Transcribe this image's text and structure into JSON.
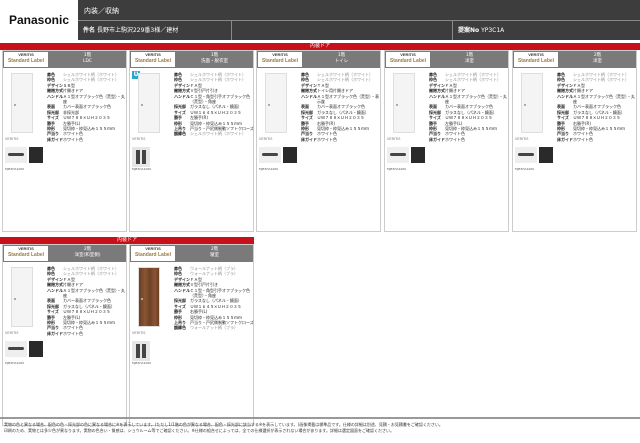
{
  "header": {
    "logo": "Panasonic",
    "category": "内装／収納",
    "project_label": "件名",
    "project": "長野市上駒沢229番3様／建材",
    "proposal_label": "提案No",
    "proposal_no": "YP3C1A"
  },
  "sections": [
    {
      "title": "内装ドア"
    },
    {
      "title": "内装ドア"
    }
  ],
  "brand": {
    "line1": "VERITIS",
    "line2": "Standard Label"
  },
  "cards": [
    {
      "floor": "1階",
      "room": "LDC",
      "door": "white",
      "hardware": "lever",
      "badge": "",
      "specs": [
        [
          "扉色",
          "シェルホワイト柄（ホワイト）",
          1
        ],
        [
          "枠色",
          "シェルホワイト柄（ホワイト）",
          1
        ],
        [
          "デザイン",
          "ＳＢ型"
        ],
        [
          "開閉方式",
          "片開きドア"
        ],
        [
          "ハンドル",
          "Ａ１型オフブラック色（荒型）・丸座"
        ],
        [
          "表面",
          "カバー表面オフブラック色"
        ],
        [
          "採光部",
          "非採光部"
        ],
        [
          "サイズ",
          "ＵＷ７８８×ＵＨ２０３５"
        ],
        [
          "勝手",
          "左勝手(L)"
        ],
        [
          "枠形",
          "見切枠・枠見込み１５５ｍｍ"
        ],
        [
          "戸当り",
          "ホワイト色"
        ],
        [
          "床ガイド",
          "ホワイト色"
        ]
      ]
    },
    {
      "floor": "1階",
      "room": "洗面・脱衣室",
      "door": "white",
      "hardware": "pull",
      "badge": "U",
      "specs": [
        [
          "扉色",
          "シェルホワイト柄（ホワイト）",
          1
        ],
        [
          "枠色",
          "シェルホワイト柄（ホワイト）",
          1
        ],
        [
          "デザイン",
          "ＦＡ型"
        ],
        [
          "開閉方式",
          "Ｖ型引戸片引き"
        ],
        [
          "ハンドル",
          "Ｃ１型・角型引手オフブラック色（荒型）・角座"
        ],
        [
          "採光部",
          "ガラスなし（パネル・鏡面）"
        ],
        [
          "サイズ",
          "ＵＷ１６４５×ＵＨ２０３５"
        ],
        [
          "勝手",
          "左勝手(R)"
        ],
        [
          "枠形",
          "見切枠・枠見込み１５５ｍｍ"
        ],
        [
          "上吊り",
          "戸当り・戸尻側制動ソフトクローズ"
        ],
        [
          "額縁色",
          "シェルホワイト柄（ホワイト）",
          1
        ]
      ]
    },
    {
      "floor": "1階",
      "room": "トイレ",
      "door": "white",
      "hardware": "lever",
      "badge": "",
      "specs": [
        [
          "扉色",
          "シェルホワイト柄（ホワイト）",
          1
        ],
        [
          "枠色",
          "シェルホワイト柄（ホワイト）",
          1
        ],
        [
          "デザイン",
          "ＴＡ型"
        ],
        [
          "開閉方式",
          "トイレ用片開きドア"
        ],
        [
          "ハンドル",
          "Ａ１型オフブラック色（荒型）・表示錠"
        ],
        [
          "表面",
          "カバー表面オフブラック色"
        ],
        [
          "採光部",
          "ガラスなし（パネル・鏡面）"
        ],
        [
          "サイズ",
          "ＵＷ７８８×ＵＨ２０３５"
        ],
        [
          "勝手",
          "右勝手(R)"
        ],
        [
          "枠形",
          "見切枠・枠見込み１５５ｍｍ"
        ],
        [
          "戸当り",
          "ホワイト色"
        ],
        [
          "床ガイド",
          "ホワイト色"
        ]
      ]
    },
    {
      "floor": "1階",
      "room": "洋室",
      "door": "white",
      "hardware": "lever",
      "badge": "",
      "specs": [
        [
          "扉色",
          "シェルホワイト柄（ホワイト）",
          1
        ],
        [
          "枠色",
          "シェルホワイト柄（ホワイト）",
          1
        ],
        [
          "デザイン",
          "ＦＡ型"
        ],
        [
          "開閉方式",
          "片開きドア"
        ],
        [
          "ハンドル",
          "Ａ１型オフブラック色（荒型）・丸座"
        ],
        [
          "表面",
          "カバー表面オフブラック色"
        ],
        [
          "採光部",
          "ガラスなし（パネル・鏡面）"
        ],
        [
          "サイズ",
          "ＵＷ７８８×ＵＨ２０３５"
        ],
        [
          "勝手",
          "左勝手(L)"
        ],
        [
          "枠形",
          "見切枠・枠見込み１５５ｍｍ"
        ],
        [
          "戸当り",
          "ホワイト色"
        ],
        [
          "床ガイド",
          "ホワイト色"
        ]
      ]
    },
    {
      "floor": "2階",
      "room": "洋室",
      "door": "white",
      "hardware": "lever",
      "badge": "",
      "specs": [
        [
          "扉色",
          "シェルホワイト柄（ホワイト）",
          1
        ],
        [
          "枠色",
          "シェルホワイト柄（ホワイト）",
          1
        ],
        [
          "デザイン",
          "ＦＡ型"
        ],
        [
          "開閉方式",
          "片開きドア"
        ],
        [
          "ハンドル",
          "Ａ１型オフブラック色（荒型）・丸座"
        ],
        [
          "表面",
          "カバー表面オフブラック色"
        ],
        [
          "採光部",
          "ガラスなし（パネル・鏡面）"
        ],
        [
          "サイズ",
          "ＵＷ７８８×ＵＨ２０３５"
        ],
        [
          "勝手",
          "右勝手(R)"
        ],
        [
          "枠形",
          "見切枠・枠見込み１５５ｍｍ"
        ],
        [
          "戸当り",
          "ホワイト色"
        ],
        [
          "床ガイド",
          "ホワイト色"
        ]
      ]
    },
    {
      "floor": "2階",
      "room": "洋室(和室側)",
      "door": "white",
      "hardware": "lever",
      "badge": "",
      "specs": [
        [
          "扉色",
          "シェルホワイト柄（ホワイト）",
          1
        ],
        [
          "枠色",
          "シェルホワイト柄（ホワイト）",
          1
        ],
        [
          "デザイン",
          "ＦＡ型"
        ],
        [
          "開閉方式",
          "片開きドア"
        ],
        [
          "ハンドル",
          "Ａ１型オフブラック色（荒型）・丸座"
        ],
        [
          "表面",
          "カバー表面オフブラック色"
        ],
        [
          "採光部",
          "ガラスなし（パネル・鏡面）"
        ],
        [
          "サイズ",
          "ＵＷ７８８×ＵＨ２０３５"
        ],
        [
          "勝手",
          "左勝手(L)"
        ],
        [
          "枠形",
          "見切枠・枠見込み１５５ｍｍ"
        ],
        [
          "戸当り",
          "ホワイト色"
        ],
        [
          "床ガイド",
          "ホワイト色"
        ]
      ]
    },
    {
      "floor": "2階",
      "room": "寝室",
      "door": "brown",
      "hardware": "pull",
      "badge": "",
      "specs": [
        [
          "扉色",
          "ウォールナット柄（ブラ）",
          1
        ],
        [
          "枠色",
          "ウォールナット柄（ブラ）",
          1
        ],
        [
          "デザイン",
          "ＦＡ型"
        ],
        [
          "開閉方式",
          "Ｖ型引戸片引き"
        ],
        [
          "ハンドル",
          "Ｃ１型・角型引手オフブラック色（荒型）・角座"
        ],
        [
          "採光部",
          "ガラスなし（パネル・鏡面）"
        ],
        [
          "サイズ",
          "ＵＷ１６４５×ＵＨ２０３５"
        ],
        [
          "勝手",
          "右勝手(L)"
        ],
        [
          "枠形",
          "見切枠・枠見込み１５５ｍｍ"
        ],
        [
          "上吊り",
          "戸当り・戸尻側制動ソフトクローズ"
        ],
        [
          "額縁色",
          "ウォールナット柄（ブラ）",
          1
        ]
      ]
    }
  ],
  "card_image_label": "VERITIS",
  "hardware_label": "MJE2HA1000",
  "footer": {
    "line1": "実物の色と異なる場合、配色の色・採光部の色に異なる場合に※を表示しています。(ただし1/1階の色が異なる場合、配色・採光部に該当する※を表示しています。)画像掲載は標準品です。仕様の詳細は別途、見積・お見積書をご確認ください。",
    "line2": "印刷のため、実物とは多少色が異なります。実物の色合い・質感は、ショウルーム等でご確認ください。※仕様の組合せによっては、全ての仕様選択が表示されない場合があります。詳細は選定図面をご確認ください。"
  }
}
